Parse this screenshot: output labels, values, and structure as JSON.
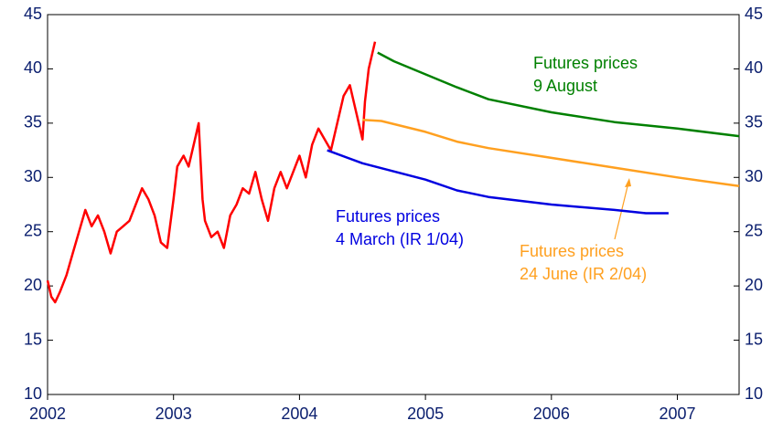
{
  "chart_data": {
    "type": "line",
    "xlim": [
      2002,
      2007.49
    ],
    "xticks": [
      2002,
      2003,
      2004,
      2005,
      2006,
      2007
    ],
    "ylim": [
      10,
      45
    ],
    "yticks": [
      10,
      15,
      20,
      25,
      30,
      35,
      40,
      45
    ],
    "y2lim": [
      10,
      45
    ],
    "y2ticks": [
      10,
      15,
      20,
      25,
      30,
      35,
      40,
      45
    ],
    "series": [
      {
        "color": "#ff0000",
        "x": [
          2002.0,
          2002.03,
          2002.06,
          2002.1,
          2002.15,
          2002.2,
          2002.25,
          2002.3,
          2002.35,
          2002.4,
          2002.45,
          2002.5,
          2002.55,
          2002.6,
          2002.65,
          2002.7,
          2002.75,
          2002.8,
          2002.85,
          2002.9,
          2002.95,
          2003.0,
          2003.03,
          2003.08,
          2003.12,
          2003.18,
          2003.2,
          2003.23,
          2003.25,
          2003.3,
          2003.35,
          2003.4,
          2003.45,
          2003.5,
          2003.55,
          2003.6,
          2003.65,
          2003.7,
          2003.75,
          2003.8,
          2003.85,
          2003.9,
          2003.95,
          2004.0,
          2004.05,
          2004.1,
          2004.15,
          2004.2,
          2004.25,
          2004.3,
          2004.35,
          2004.4,
          2004.45,
          2004.5,
          2004.52,
          2004.55,
          2004.6
        ],
        "values": [
          20.5,
          19,
          18.5,
          19.5,
          21,
          23,
          25,
          27,
          25.5,
          26.5,
          25,
          23,
          25,
          25.5,
          26,
          27.5,
          29,
          28,
          26.5,
          24,
          23.5,
          28,
          31,
          32,
          31,
          34,
          35,
          28,
          26,
          24.5,
          25,
          23.5,
          26.5,
          27.5,
          29,
          28.5,
          30.5,
          28,
          26,
          29,
          30.5,
          29,
          30.5,
          32,
          30,
          33,
          34.5,
          33.5,
          32.5,
          35,
          37.5,
          38.5,
          36,
          33.5,
          37,
          40,
          42.5
        ]
      },
      {
        "color": "#0000e0",
        "x": [
          2004.22,
          2004.5,
          2005,
          2005.25,
          2005.5,
          2006,
          2006.5,
          2006.75,
          2006.93
        ],
        "values": [
          32.5,
          31.3,
          29.8,
          28.8,
          28.2,
          27.5,
          27,
          26.7,
          26.7
        ]
      },
      {
        "color": "#ffa020",
        "x": [
          2004.5,
          2004.65,
          2005,
          2005.25,
          2005.5,
          2006,
          2006.5,
          2007,
          2007.49
        ],
        "values": [
          35.3,
          35.2,
          34.2,
          33.3,
          32.7,
          31.8,
          30.9,
          30,
          29.2
        ]
      },
      {
        "color": "#008000",
        "x": [
          2004.62,
          2004.75,
          2005,
          2005.25,
          2005.5,
          2006,
          2006.5,
          2007,
          2007.49
        ],
        "values": [
          41.5,
          40.7,
          39.5,
          38.3,
          37.2,
          36,
          35.1,
          34.5,
          33.8
        ]
      }
    ],
    "annotations": [
      {
        "lines": [
          "Futures prices",
          "9 August"
        ],
        "color": "#008000"
      },
      {
        "lines": [
          "Futures prices",
          "4 March (IR 1/04)"
        ],
        "color": "#0000e0"
      },
      {
        "lines": [
          "Futures prices",
          "24 June (IR 2/04)"
        ],
        "color": "#ffa020"
      }
    ]
  }
}
